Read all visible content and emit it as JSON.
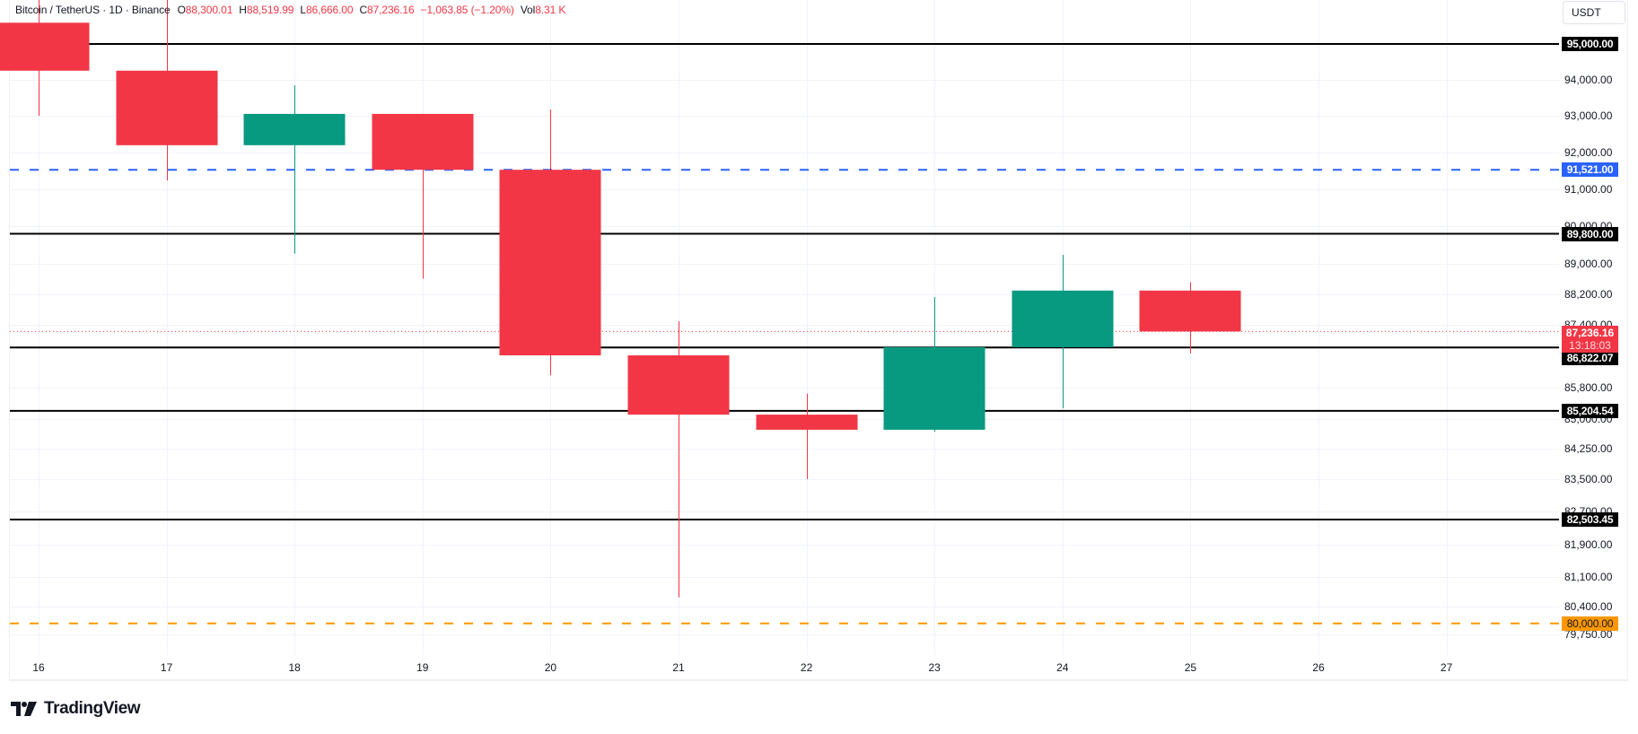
{
  "header": {
    "symbol": "Bitcoin / TetherUS · 1D · Binance",
    "open_key": "O",
    "open": "88,300.01",
    "high_key": "H",
    "high": "88,519.99",
    "low_key": "L",
    "low": "86,666.00",
    "close_key": "C",
    "close": "87,236.16",
    "change": "−1,063.85 (−1.20%)",
    "vol_key": "Vol",
    "vol": "8.31 K"
  },
  "currency_button": "USDT",
  "current_price": {
    "label": "87,236.16",
    "countdown": "13:18:03",
    "value": 87236.16,
    "color": "#f23645"
  },
  "logo": {
    "text": "TradingView",
    "icon": "tradingview-logo-icon"
  },
  "colors": {
    "up": "#089981",
    "down": "#f23645",
    "grid": "#f0f3fa",
    "level": "#000000",
    "blue_level": "#2962ff",
    "orange_level": "#ff9800"
  },
  "chart_data": {
    "type": "candlestick",
    "title": "Bitcoin / TetherUS · 1D · Binance",
    "xlabel": "",
    "ylabel": "USDT",
    "scale": "log",
    "ylim": [
      79600,
      96300
    ],
    "grid": true,
    "x_ticks": [
      "16",
      "17",
      "18",
      "19",
      "20",
      "21",
      "22",
      "23",
      "24",
      "25",
      "26",
      "27"
    ],
    "y_ticks": [
      {
        "value": 94000,
        "label": "94,000.00"
      },
      {
        "value": 93000,
        "label": "93,000.00"
      },
      {
        "value": 92000,
        "label": "92,000.00"
      },
      {
        "value": 91000,
        "label": "91,000.00"
      },
      {
        "value": 90000,
        "label": "90,000.00"
      },
      {
        "value": 89000,
        "label": "89,000.00"
      },
      {
        "value": 88200,
        "label": "88,200.00"
      },
      {
        "value": 87400,
        "label": "87,400.00"
      },
      {
        "value": 85800,
        "label": "85,800.00"
      },
      {
        "value": 85000,
        "label": "85,000.00"
      },
      {
        "value": 84250,
        "label": "84,250.00"
      },
      {
        "value": 83500,
        "label": "83,500.00"
      },
      {
        "value": 82700,
        "label": "82,700.00"
      },
      {
        "value": 81900,
        "label": "81,900.00"
      },
      {
        "value": 81100,
        "label": "81,100.00"
      },
      {
        "value": 80400,
        "label": "80,400.00"
      },
      {
        "value": 79750,
        "label": "79,750.00"
      }
    ],
    "candles": [
      {
        "day": "16",
        "open": 95600,
        "high": 97400,
        "low": 93000,
        "close": 94250
      },
      {
        "day": "17",
        "open": 94250,
        "high": 97000,
        "low": 91230,
        "close": 92190
      },
      {
        "day": "18",
        "open": 92190,
        "high": 93840,
        "low": 89270,
        "close": 93050
      },
      {
        "day": "19",
        "open": 93050,
        "high": 93050,
        "low": 88610,
        "close": 91521
      },
      {
        "day": "20",
        "open": 91521,
        "high": 93170,
        "low": 86110,
        "close": 86620
      },
      {
        "day": "21",
        "open": 86620,
        "high": 87500,
        "low": 80620,
        "close": 85110
      },
      {
        "day": "22",
        "open": 85110,
        "high": 85640,
        "low": 83500,
        "close": 84730
      },
      {
        "day": "23",
        "open": 84730,
        "high": 88130,
        "low": 84680,
        "close": 86830
      },
      {
        "day": "24",
        "open": 86830,
        "high": 89240,
        "low": 85270,
        "close": 88300
      },
      {
        "day": "25",
        "open": 88300.01,
        "high": 88519.99,
        "low": 86666.0,
        "close": 87236.16
      }
    ],
    "levels": [
      {
        "value": 95000,
        "label": "95,000.00",
        "style": "solid",
        "color": "#000000"
      },
      {
        "value": 91521,
        "label": "91,521.00",
        "style": "dashed",
        "color": "#2962ff"
      },
      {
        "value": 89800,
        "label": "89,800.00",
        "style": "solid",
        "color": "#000000"
      },
      {
        "value": 86822.07,
        "label": "86,822.07",
        "style": "solid",
        "color": "#000000",
        "label_offset": 12
      },
      {
        "value": 85204.54,
        "label": "85,204.54",
        "style": "solid",
        "color": "#000000"
      },
      {
        "value": 82503.45,
        "label": "82,503.45",
        "style": "solid",
        "color": "#000000"
      },
      {
        "value": 80000,
        "label": "80,000.00",
        "style": "dashed",
        "color": "#ff9800",
        "text_color": "#131722"
      }
    ]
  }
}
